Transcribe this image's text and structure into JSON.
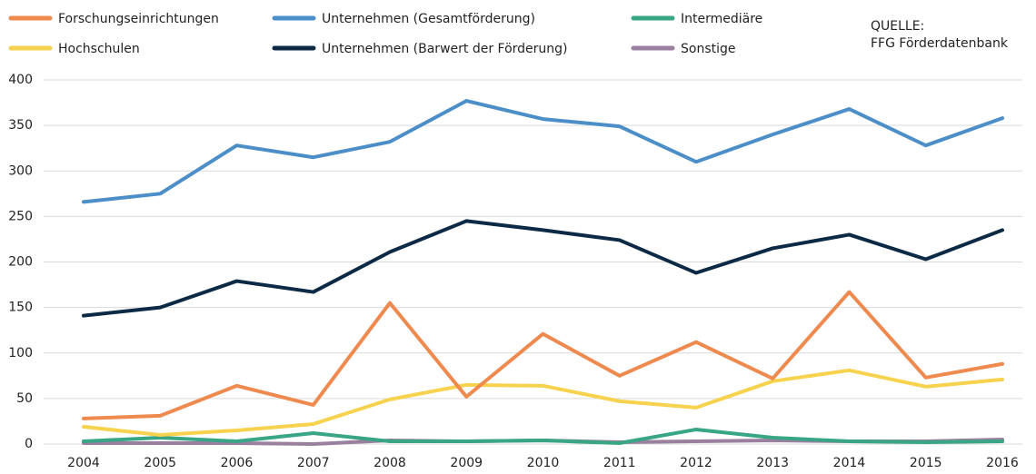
{
  "chart_data": {
    "type": "line",
    "source": [
      "QUELLE:",
      "FFG Förderdatenbank"
    ],
    "categories": [
      "2004",
      "2005",
      "2006",
      "2007",
      "2008",
      "2009",
      "2010",
      "2011",
      "2012",
      "2013",
      "2014",
      "2015",
      "2016"
    ],
    "series": [
      {
        "name": "Forschungseinrichtungen",
        "color": "#ef8a4f",
        "values": [
          28,
          31,
          64,
          43,
          155,
          52,
          121,
          75,
          112,
          72,
          167,
          73,
          88
        ]
      },
      {
        "name": "Hochschulen",
        "color": "#f6d24e",
        "values": [
          19,
          10,
          15,
          22,
          49,
          65,
          64,
          47,
          40,
          69,
          81,
          63,
          71
        ]
      },
      {
        "name": "Unternehmen (Gesamtförderung)",
        "color": "#4b8ec8",
        "values": [
          266,
          275,
          328,
          315,
          332,
          377,
          357,
          349,
          310,
          340,
          368,
          328,
          358
        ]
      },
      {
        "name": "Unternehmen (Barwert der Förderung)",
        "color": "#0c2a45",
        "values": [
          141,
          150,
          179,
          167,
          211,
          245,
          235,
          224,
          188,
          215,
          230,
          203,
          235
        ]
      },
      {
        "name": "Intermediäre",
        "color": "#38a584",
        "values": [
          3,
          7,
          3,
          12,
          3,
          3,
          4,
          1,
          16,
          7,
          3,
          2,
          3
        ]
      },
      {
        "name": "Sonstige",
        "color": "#9a7f9f",
        "values": [
          1,
          1,
          1,
          0,
          4,
          3,
          4,
          2,
          3,
          4,
          3,
          3,
          5
        ]
      }
    ],
    "ylim": [
      0,
      400
    ],
    "yticks": [
      0,
      50,
      100,
      150,
      200,
      250,
      300,
      350,
      400
    ],
    "grid": true
  }
}
